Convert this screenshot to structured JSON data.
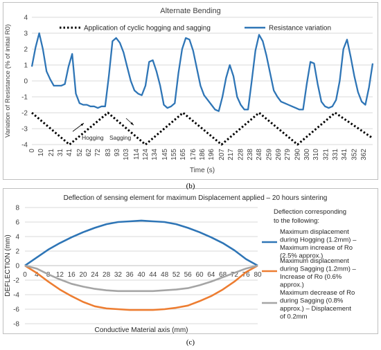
{
  "charts": [
    {
      "type": "line",
      "title": "Alternate Bending",
      "xlabel": "Time (s)",
      "ylabel": "Variation of Resistance (% of initial R0)",
      "ylim": [
        -4,
        4
      ],
      "yticks": [
        -4,
        -3,
        -2,
        -1,
        0,
        1,
        2,
        3,
        4
      ],
      "xlim": [
        0,
        372
      ],
      "xticks": [
        0,
        10,
        21,
        31,
        41,
        52,
        62,
        72,
        83,
        93,
        103,
        114,
        124,
        134,
        145,
        155,
        165,
        176,
        186,
        196,
        207,
        217,
        228,
        238,
        248,
        259,
        269,
        279,
        290,
        300,
        310,
        321,
        331,
        341,
        352,
        362
      ],
      "grid": "horizontal",
      "legend_position": "top",
      "annotations": [
        "Hogging",
        "Sagging"
      ],
      "series": [
        {
          "name": "Application of cyclic hogging and sagging",
          "style": "dotted",
          "color": "#000000",
          "x": [
            0,
            41,
            83,
            124,
            165,
            207,
            248,
            290,
            331,
            372
          ],
          "y": [
            -2,
            -4,
            -2,
            -4,
            -2,
            -4,
            -2,
            -4,
            -2,
            -3.6
          ]
        },
        {
          "name": "Resistance variation",
          "style": "solid",
          "color": "#2e75b6",
          "x": [
            0,
            4,
            8,
            12,
            16,
            20,
            24,
            28,
            32,
            36,
            40,
            44,
            48,
            52,
            56,
            60,
            64,
            68,
            72,
            76,
            80,
            84,
            88,
            92,
            96,
            100,
            104,
            108,
            112,
            116,
            120,
            124,
            128,
            132,
            136,
            140,
            144,
            148,
            152,
            156,
            160,
            164,
            168,
            172,
            176,
            180,
            184,
            188,
            192,
            196,
            200,
            204,
            208,
            212,
            216,
            220,
            224,
            228,
            232,
            236,
            240,
            244,
            248,
            252,
            256,
            260,
            264,
            268,
            272,
            276,
            280,
            284,
            288,
            292,
            296,
            300,
            304,
            308,
            312,
            316,
            320,
            324,
            328,
            332,
            336,
            340,
            344,
            348,
            352,
            356,
            360,
            364,
            368,
            372
          ],
          "y": [
            0.9,
            2.1,
            3.0,
            2.0,
            0.6,
            0.1,
            -0.3,
            -0.3,
            -0.3,
            -0.2,
            0.9,
            1.7,
            -0.8,
            -1.4,
            -1.5,
            -1.5,
            -1.6,
            -1.6,
            -1.7,
            -1.6,
            -1.6,
            0.3,
            2.5,
            2.7,
            2.4,
            1.8,
            0.9,
            0.0,
            -0.6,
            -0.8,
            -0.9,
            -0.3,
            1.2,
            1.3,
            0.6,
            -0.3,
            -1.5,
            -1.7,
            -1.6,
            -1.4,
            0.5,
            2.0,
            2.7,
            2.6,
            1.9,
            0.8,
            -0.3,
            -0.9,
            -1.2,
            -1.5,
            -1.8,
            -1.9,
            -1.0,
            0.2,
            1.0,
            0.3,
            -1.0,
            -1.5,
            -1.8,
            -1.8,
            0.0,
            1.9,
            2.9,
            2.5,
            1.6,
            0.5,
            -0.6,
            -1.0,
            -1.3,
            -1.4,
            -1.5,
            -1.6,
            -1.7,
            -1.8,
            -1.8,
            -0.2,
            1.2,
            1.1,
            -0.2,
            -1.3,
            -1.6,
            -1.7,
            -1.6,
            -1.2,
            0.0,
            2.0,
            2.6,
            1.5,
            0.3,
            -0.7,
            -1.3,
            -1.5,
            -0.4,
            1.1
          ]
        }
      ]
    },
    {
      "type": "line",
      "title": "Deflection of sensing element for maximum Displacement applied – 20 hours sintering",
      "xlabel": "Conductive Material axis (mm)",
      "ylabel": "DEFLECTION (mm)",
      "ylim": [
        -8,
        8
      ],
      "yticks": [
        -8,
        -6,
        -4,
        -2,
        0,
        2,
        4,
        6,
        8
      ],
      "xlim": [
        0,
        80
      ],
      "xticks": [
        0,
        4,
        8,
        12,
        16,
        20,
        24,
        28,
        32,
        36,
        40,
        44,
        48,
        52,
        56,
        60,
        64,
        68,
        72,
        76,
        80
      ],
      "grid": "horizontal",
      "legend_position": "right",
      "legend_title_line1": "Deflection corresponding",
      "legend_title_line2": "to the following:",
      "series": [
        {
          "name": "Maximum displacement during Hogging (1.2mm) – Maximum increase of Ro (2.5% approx.)",
          "name_lines": [
            "Maximum displacement",
            "during Hogging (1.2mm) –",
            "Maximum increase of Ro",
            "(2.5% approx.)"
          ],
          "color": "#2e75b6",
          "x": [
            0,
            4,
            8,
            12,
            16,
            20,
            24,
            28,
            32,
            36,
            40,
            44,
            48,
            52,
            56,
            60,
            64,
            68,
            72,
            76,
            80
          ],
          "y": [
            0,
            1.1,
            2.2,
            3.1,
            3.9,
            4.6,
            5.2,
            5.7,
            6.0,
            6.1,
            6.2,
            6.1,
            6.0,
            5.7,
            5.2,
            4.6,
            3.9,
            3.1,
            2.1,
            0.9,
            0
          ]
        },
        {
          "name": "Maximum displacement during Sagging (1.2mm) – Increase of Ro (0.6% approx.)",
          "name_lines": [
            "Maximum displacement",
            "during Sagging (1.2mm) –",
            "Increase of Ro (0.6%",
            "approx.)"
          ],
          "color": "#ed7d31",
          "x": [
            0,
            4,
            8,
            12,
            16,
            20,
            24,
            28,
            32,
            36,
            40,
            44,
            48,
            52,
            56,
            60,
            64,
            68,
            72,
            76,
            80
          ],
          "y": [
            0,
            -1.0,
            -2.2,
            -3.3,
            -4.2,
            -5.0,
            -5.6,
            -5.9,
            -6.0,
            -6.1,
            -6.1,
            -6.1,
            -6.0,
            -5.8,
            -5.5,
            -4.9,
            -4.2,
            -3.3,
            -2.2,
            -0.9,
            0
          ]
        },
        {
          "name": "Maximum decrease of Ro during Sagging (0.8% approx.) – Displacement of 0.2mm",
          "name_lines": [
            "Maximum decrease of Ro",
            "during Sagging (0.8%",
            "approx.) – Displacement",
            "of 0.2mm"
          ],
          "color": "#a5a5a5",
          "x": [
            0,
            4,
            8,
            12,
            16,
            20,
            24,
            28,
            32,
            36,
            40,
            44,
            48,
            52,
            56,
            60,
            64,
            68,
            72,
            76,
            80
          ],
          "y": [
            0,
            -0.4,
            -1.2,
            -1.9,
            -2.5,
            -2.9,
            -3.2,
            -3.4,
            -3.5,
            -3.5,
            -3.5,
            -3.5,
            -3.4,
            -3.3,
            -3.1,
            -2.7,
            -2.2,
            -1.6,
            -1.0,
            -0.4,
            0
          ]
        }
      ]
    }
  ],
  "captions": [
    "(b)",
    "(c)"
  ]
}
